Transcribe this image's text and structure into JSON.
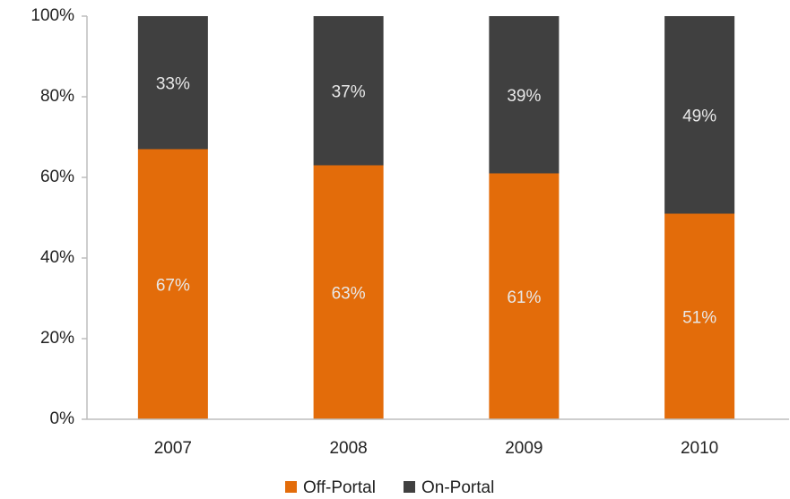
{
  "chart_data": {
    "type": "stacked_bar",
    "categories": [
      "2007",
      "2008",
      "2009",
      "2010"
    ],
    "series": [
      {
        "name": "Off-Portal",
        "color": "#e36c0a",
        "values": [
          67,
          63,
          61,
          51
        ],
        "value_labels": [
          "67%",
          "63%",
          "61%",
          "51%"
        ]
      },
      {
        "name": "On-Portal",
        "color": "#404040",
        "values": [
          33,
          37,
          39,
          49
        ],
        "value_labels": [
          "33%",
          "37%",
          "39%",
          "49%"
        ]
      }
    ],
    "ylim": [
      0,
      100
    ],
    "yticks": [
      {
        "value": 0,
        "label": "0%"
      },
      {
        "value": 20,
        "label": "20%"
      },
      {
        "value": 40,
        "label": "40%"
      },
      {
        "value": 60,
        "label": "60%"
      },
      {
        "value": 80,
        "label": "80%"
      },
      {
        "value": 100,
        "label": "100%"
      }
    ],
    "grid": false,
    "legend": "bottom"
  }
}
